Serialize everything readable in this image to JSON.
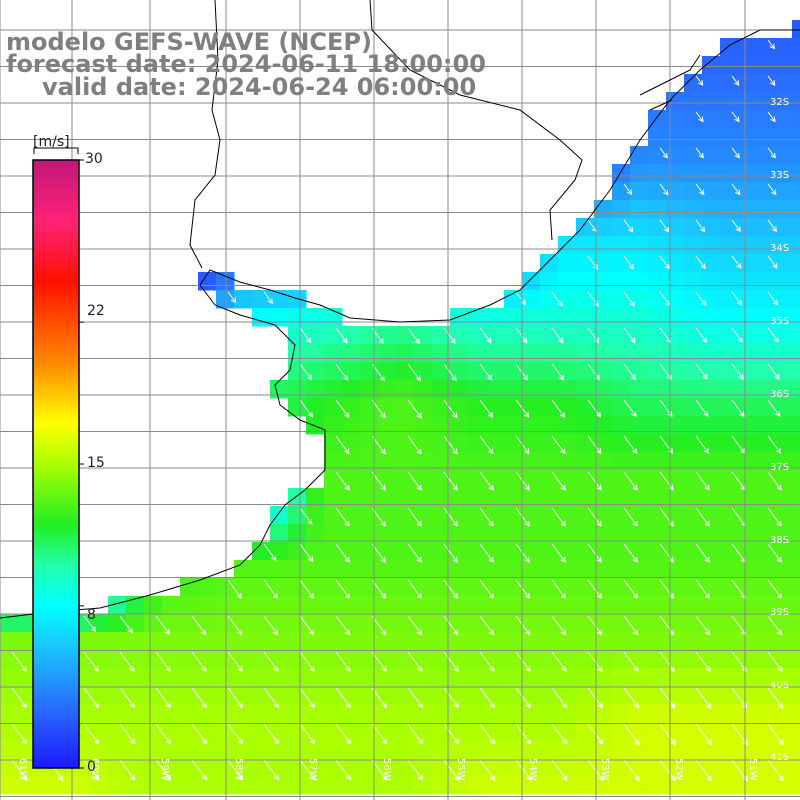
{
  "title": {
    "line1": "modelo GEFS-WAVE (NCEP)",
    "line2": "forecast date: 2024-06-11 18:00:00",
    "line3": "valid date: 2024-06-24 06:00:00"
  },
  "colorbar": {
    "unit": "[m/s]",
    "ticks": [
      {
        "label": "30",
        "value": 30
      },
      {
        "label": "22",
        "value": 22
      },
      {
        "label": "15",
        "value": 15
      },
      {
        "label": "8",
        "value": 8
      },
      {
        "label": "0",
        "value": 0
      }
    ],
    "min": 0,
    "max": 30,
    "stops": [
      {
        "value": 0,
        "color": "#1a1aff"
      },
      {
        "value": 3,
        "color": "#2a6dff"
      },
      {
        "value": 6,
        "color": "#19c7ff"
      },
      {
        "value": 8,
        "color": "#00ffff"
      },
      {
        "value": 10,
        "color": "#22ffaa"
      },
      {
        "value": 12,
        "color": "#22ee22"
      },
      {
        "value": 15,
        "color": "#aaff00"
      },
      {
        "value": 17,
        "color": "#ffff00"
      },
      {
        "value": 20,
        "color": "#ff8800"
      },
      {
        "value": 24,
        "color": "#ff1100"
      },
      {
        "value": 27,
        "color": "#ff2277"
      },
      {
        "value": 30,
        "color": "#c0187a"
      }
    ]
  },
  "map": {
    "lat_labels": [
      "32S",
      "33S",
      "34S",
      "35S",
      "36S",
      "37S",
      "38S",
      "39S",
      "40S",
      "41S"
    ],
    "lon_labels": [
      "61W",
      "60W",
      "59W",
      "58W",
      "57W",
      "56W",
      "55W",
      "54W",
      "53W",
      "52W",
      "51W"
    ],
    "wind_direction": "from north-west toward south-east",
    "speed_field_ms": [
      [
        0,
        0,
        0,
        0,
        0,
        0,
        0,
        0,
        0,
        2,
        2
      ],
      [
        0,
        0,
        0,
        0,
        0,
        0,
        0,
        0,
        3,
        3,
        3
      ],
      [
        0,
        0,
        0,
        0,
        0,
        0,
        0,
        0,
        4,
        4,
        4
      ],
      [
        0,
        0,
        0,
        0,
        0,
        0,
        0,
        7,
        7,
        6,
        6
      ],
      [
        0,
        0,
        0,
        8,
        9,
        10,
        9,
        9,
        9,
        8,
        8
      ],
      [
        0,
        0,
        0,
        11,
        12,
        13,
        12,
        12,
        11,
        11,
        11
      ],
      [
        0,
        0,
        0,
        0,
        13,
        13,
        13,
        13,
        13,
        13,
        13
      ],
      [
        0,
        0,
        12,
        13,
        13,
        13,
        13,
        13,
        13,
        13,
        13
      ],
      [
        14,
        14,
        14,
        14,
        14,
        14,
        14,
        14,
        14,
        14,
        14
      ],
      [
        15,
        15,
        15,
        15,
        15,
        15,
        15,
        15,
        16,
        16,
        16
      ],
      [
        16,
        16,
        15,
        15,
        15,
        15,
        16,
        16,
        16,
        16,
        16
      ]
    ]
  }
}
